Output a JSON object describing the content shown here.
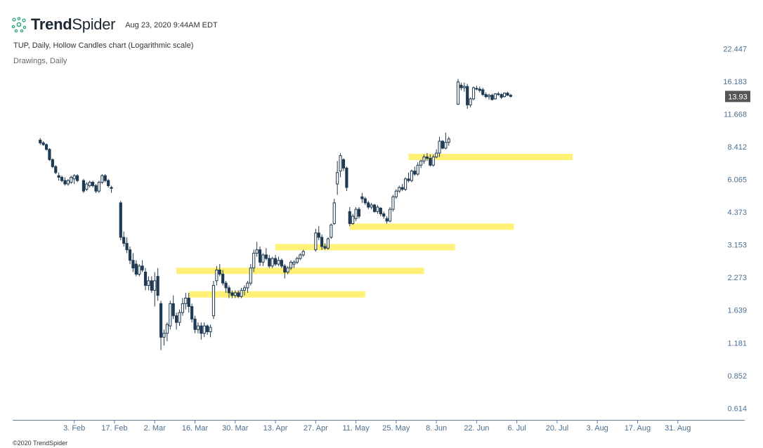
{
  "header": {
    "brand_bold": "Trend",
    "brand_light": "Spider",
    "timestamp": "Aug 23, 2020 9:44AM EDT",
    "subtitle": "TUP, Daily, Hollow Candles chart (Logarithmic scale)",
    "drawings": "Drawings, Daily"
  },
  "footer": {
    "copyright": "©2020 TrendSpider"
  },
  "colors": {
    "candle": "#1f3a52",
    "zone": "#fff176",
    "axis": "#4a6f90",
    "tag": "#555555"
  },
  "chart_data": {
    "type": "candlestick",
    "ticker": "TUP",
    "scale": "log",
    "title": "TUP, Daily, Hollow Candles chart (Logarithmic scale)",
    "ylim": [
      0.55,
      24
    ],
    "yticks": [
      22.447,
      16.183,
      11.668,
      8.412,
      6.065,
      4.373,
      3.153,
      2.273,
      1.639,
      1.181,
      0.852,
      0.614
    ],
    "ytick_labels": [
      "22.447",
      "16.183",
      "11.668",
      "8.412",
      "6.065",
      "4.373",
      "3.153",
      "2.273",
      "1.639",
      "1.181",
      "0.852",
      "0.614"
    ],
    "xlim": [
      -8,
      214
    ],
    "xticks": [
      {
        "label": "3. Feb",
        "i": 11
      },
      {
        "label": "17. Feb",
        "i": 24
      },
      {
        "label": "2. Mar",
        "i": 37
      },
      {
        "label": "16. Mar",
        "i": 50
      },
      {
        "label": "30. Mar",
        "i": 63
      },
      {
        "label": "13. Apr",
        "i": 76
      },
      {
        "label": "27. Apr",
        "i": 89
      },
      {
        "label": "11. May",
        "i": 102
      },
      {
        "label": "25. May",
        "i": 115
      },
      {
        "label": "8. Jun",
        "i": 128
      },
      {
        "label": "22. Jun",
        "i": 141
      },
      {
        "label": "6. Jul",
        "i": 154
      },
      {
        "label": "20. Jul",
        "i": 167
      },
      {
        "label": "3. Aug",
        "i": 180
      },
      {
        "label": "17. Aug",
        "i": 193
      },
      {
        "label": "31. Aug",
        "i": 206
      }
    ],
    "last_price": "13.93",
    "last_value": 13.93,
    "zones": [
      {
        "price": 1.92,
        "i_start": 48,
        "i_end": 105
      },
      {
        "price": 2.43,
        "i_start": 44,
        "i_end": 124
      },
      {
        "price": 3.08,
        "i_start": 76,
        "i_end": 134
      },
      {
        "price": 3.78,
        "i_start": 100,
        "i_end": 153
      },
      {
        "price": 7.6,
        "i_start": 119,
        "i_end": 172
      }
    ],
    "candles": [
      {
        "i": 0,
        "o": 9.0,
        "h": 9.2,
        "l": 8.6,
        "c": 8.75
      },
      {
        "i": 1,
        "o": 8.75,
        "h": 8.9,
        "l": 8.5,
        "c": 8.6
      },
      {
        "i": 2,
        "o": 8.6,
        "h": 8.7,
        "l": 8.1,
        "c": 8.2
      },
      {
        "i": 3,
        "o": 8.2,
        "h": 8.3,
        "l": 7.3,
        "c": 7.4
      },
      {
        "i": 4,
        "o": 7.4,
        "h": 7.5,
        "l": 6.8,
        "c": 6.9
      },
      {
        "i": 5,
        "o": 6.9,
        "h": 7.0,
        "l": 6.4,
        "c": 6.5
      },
      {
        "i": 6,
        "o": 6.3,
        "h": 6.5,
        "l": 6.0,
        "c": 6.2
      },
      {
        "i": 7,
        "o": 6.2,
        "h": 6.3,
        "l": 5.9,
        "c": 6.0
      },
      {
        "i": 8,
        "o": 6.0,
        "h": 6.2,
        "l": 5.7,
        "c": 5.8
      },
      {
        "i": 9,
        "o": 5.8,
        "h": 6.1,
        "l": 5.7,
        "c": 6.0
      },
      {
        "i": 10,
        "o": 5.9,
        "h": 6.3,
        "l": 5.8,
        "c": 6.2
      },
      {
        "i": 11,
        "o": 6.1,
        "h": 6.4,
        "l": 5.8,
        "c": 6.3
      },
      {
        "i": 12,
        "o": 6.3,
        "h": 6.4,
        "l": 5.9,
        "c": 6.0
      },
      {
        "i": 14,
        "o": 6.0,
        "h": 6.1,
        "l": 5.3,
        "c": 5.4
      },
      {
        "i": 15,
        "o": 5.5,
        "h": 5.9,
        "l": 5.4,
        "c": 5.8
      },
      {
        "i": 16,
        "o": 5.7,
        "h": 6.0,
        "l": 5.6,
        "c": 5.9
      },
      {
        "i": 17,
        "o": 5.9,
        "h": 6.0,
        "l": 5.6,
        "c": 5.7
      },
      {
        "i": 18,
        "o": 5.7,
        "h": 5.8,
        "l": 5.3,
        "c": 5.4
      },
      {
        "i": 19,
        "o": 5.4,
        "h": 6.0,
        "l": 5.3,
        "c": 5.9
      },
      {
        "i": 20,
        "o": 5.9,
        "h": 6.4,
        "l": 5.8,
        "c": 6.3
      },
      {
        "i": 21,
        "o": 6.3,
        "h": 6.4,
        "l": 5.9,
        "c": 6.0
      },
      {
        "i": 22,
        "o": 6.0,
        "h": 6.1,
        "l": 5.6,
        "c": 5.7
      },
      {
        "i": 23,
        "o": 5.6,
        "h": 5.7,
        "l": 5.3,
        "c": 5.55
      },
      {
        "i": 26,
        "o": 4.8,
        "h": 4.9,
        "l": 3.3,
        "c": 3.4
      },
      {
        "i": 27,
        "o": 3.4,
        "h": 3.6,
        "l": 3.1,
        "c": 3.2
      },
      {
        "i": 28,
        "o": 3.2,
        "h": 3.4,
        "l": 2.9,
        "c": 3.0
      },
      {
        "i": 29,
        "o": 3.0,
        "h": 3.1,
        "l": 2.6,
        "c": 2.7
      },
      {
        "i": 30,
        "o": 2.7,
        "h": 2.9,
        "l": 2.4,
        "c": 2.5
      },
      {
        "i": 31,
        "o": 2.6,
        "h": 2.7,
        "l": 2.3,
        "c": 2.35
      },
      {
        "i": 32,
        "o": 2.35,
        "h": 2.6,
        "l": 2.3,
        "c": 2.55
      },
      {
        "i": 33,
        "o": 2.55,
        "h": 2.7,
        "l": 2.4,
        "c": 2.45
      },
      {
        "i": 34,
        "o": 2.4,
        "h": 2.5,
        "l": 2.0,
        "c": 2.1
      },
      {
        "i": 35,
        "o": 2.1,
        "h": 2.3,
        "l": 2.0,
        "c": 2.2
      },
      {
        "i": 36,
        "o": 2.2,
        "h": 2.3,
        "l": 1.95,
        "c": 2.0
      },
      {
        "i": 37,
        "o": 2.0,
        "h": 2.4,
        "l": 1.7,
        "c": 2.2
      },
      {
        "i": 38,
        "o": 2.3,
        "h": 2.5,
        "l": 1.8,
        "c": 1.9
      },
      {
        "i": 39,
        "o": 1.75,
        "h": 1.8,
        "l": 1.1,
        "c": 1.25
      },
      {
        "i": 40,
        "o": 1.25,
        "h": 1.35,
        "l": 1.15,
        "c": 1.3
      },
      {
        "i": 41,
        "o": 1.3,
        "h": 1.45,
        "l": 1.2,
        "c": 1.42
      },
      {
        "i": 42,
        "o": 1.4,
        "h": 1.8,
        "l": 1.35,
        "c": 1.75
      },
      {
        "i": 43,
        "o": 1.75,
        "h": 1.9,
        "l": 1.5,
        "c": 1.55
      },
      {
        "i": 44,
        "o": 1.55,
        "h": 1.6,
        "l": 1.35,
        "c": 1.45
      },
      {
        "i": 45,
        "o": 1.45,
        "h": 1.65,
        "l": 1.4,
        "c": 1.6
      },
      {
        "i": 46,
        "o": 1.6,
        "h": 1.85,
        "l": 1.55,
        "c": 1.75
      },
      {
        "i": 47,
        "o": 1.75,
        "h": 1.95,
        "l": 1.65,
        "c": 1.85
      },
      {
        "i": 48,
        "o": 1.85,
        "h": 1.95,
        "l": 1.6,
        "c": 1.7
      },
      {
        "i": 49,
        "o": 1.7,
        "h": 1.75,
        "l": 1.45,
        "c": 1.5
      },
      {
        "i": 50,
        "o": 1.5,
        "h": 1.55,
        "l": 1.3,
        "c": 1.35
      },
      {
        "i": 51,
        "o": 1.35,
        "h": 1.45,
        "l": 1.3,
        "c": 1.4
      },
      {
        "i": 52,
        "o": 1.4,
        "h": 1.45,
        "l": 1.22,
        "c": 1.3
      },
      {
        "i": 53,
        "o": 1.3,
        "h": 1.45,
        "l": 1.25,
        "c": 1.4
      },
      {
        "i": 54,
        "o": 1.4,
        "h": 1.42,
        "l": 1.28,
        "c": 1.32
      },
      {
        "i": 55,
        "o": 1.32,
        "h": 1.42,
        "l": 1.25,
        "c": 1.38
      },
      {
        "i": 56,
        "o": 1.55,
        "h": 2.2,
        "l": 1.5,
        "c": 2.1
      },
      {
        "i": 57,
        "o": 2.2,
        "h": 2.55,
        "l": 2.1,
        "c": 2.45
      },
      {
        "i": 58,
        "o": 2.45,
        "h": 2.6,
        "l": 2.3,
        "c": 2.35
      },
      {
        "i": 59,
        "o": 2.35,
        "h": 2.45,
        "l": 2.1,
        "c": 2.15
      },
      {
        "i": 60,
        "o": 2.15,
        "h": 2.2,
        "l": 1.95,
        "c": 2.05
      },
      {
        "i": 61,
        "o": 2.05,
        "h": 2.1,
        "l": 1.85,
        "c": 1.95
      },
      {
        "i": 62,
        "o": 1.95,
        "h": 2.0,
        "l": 1.85,
        "c": 1.9
      },
      {
        "i": 63,
        "o": 1.9,
        "h": 2.0,
        "l": 1.85,
        "c": 1.95
      },
      {
        "i": 64,
        "o": 1.95,
        "h": 2.0,
        "l": 1.85,
        "c": 1.88
      },
      {
        "i": 65,
        "o": 1.88,
        "h": 2.05,
        "l": 1.85,
        "c": 2.0
      },
      {
        "i": 66,
        "o": 2.0,
        "h": 2.1,
        "l": 1.9,
        "c": 2.05
      },
      {
        "i": 67,
        "o": 2.05,
        "h": 2.2,
        "l": 1.95,
        "c": 2.15
      },
      {
        "i": 68,
        "o": 2.15,
        "h": 2.6,
        "l": 2.1,
        "c": 2.5
      },
      {
        "i": 69,
        "o": 2.5,
        "h": 3.0,
        "l": 2.4,
        "c": 2.9
      },
      {
        "i": 70,
        "o": 2.9,
        "h": 3.25,
        "l": 2.8,
        "c": 3.0
      },
      {
        "i": 71,
        "o": 3.0,
        "h": 3.1,
        "l": 2.55,
        "c": 2.65
      },
      {
        "i": 72,
        "o": 2.65,
        "h": 2.9,
        "l": 2.55,
        "c": 2.85
      },
      {
        "i": 73,
        "o": 2.85,
        "h": 3.05,
        "l": 2.7,
        "c": 2.75
      },
      {
        "i": 74,
        "o": 2.75,
        "h": 2.85,
        "l": 2.5,
        "c": 2.55
      },
      {
        "i": 75,
        "o": 2.55,
        "h": 2.8,
        "l": 2.5,
        "c": 2.75
      },
      {
        "i": 76,
        "o": 2.75,
        "h": 2.85,
        "l": 2.55,
        "c": 2.6
      },
      {
        "i": 77,
        "o": 2.6,
        "h": 2.8,
        "l": 2.55,
        "c": 2.7
      },
      {
        "i": 78,
        "o": 2.7,
        "h": 2.75,
        "l": 2.5,
        "c": 2.55
      },
      {
        "i": 79,
        "o": 2.55,
        "h": 2.6,
        "l": 2.25,
        "c": 2.4
      },
      {
        "i": 80,
        "o": 2.4,
        "h": 2.55,
        "l": 2.35,
        "c": 2.5
      },
      {
        "i": 81,
        "o": 2.5,
        "h": 2.7,
        "l": 2.45,
        "c": 2.65
      },
      {
        "i": 82,
        "o": 2.6,
        "h": 2.7,
        "l": 2.5,
        "c": 2.65
      },
      {
        "i": 83,
        "o": 2.65,
        "h": 2.8,
        "l": 2.6,
        "c": 2.75
      },
      {
        "i": 84,
        "o": 2.75,
        "h": 2.9,
        "l": 2.7,
        "c": 2.85
      },
      {
        "i": 85,
        "o": 2.85,
        "h": 3.0,
        "l": 2.8,
        "c": 2.95
      },
      {
        "i": 89,
        "o": 3.0,
        "h": 3.7,
        "l": 2.95,
        "c": 3.55
      },
      {
        "i": 90,
        "o": 3.55,
        "h": 3.8,
        "l": 3.3,
        "c": 3.4
      },
      {
        "i": 91,
        "o": 3.4,
        "h": 3.5,
        "l": 3.0,
        "c": 3.1
      },
      {
        "i": 92,
        "o": 3.1,
        "h": 3.2,
        "l": 3.0,
        "c": 3.05
      },
      {
        "i": 93,
        "o": 3.05,
        "h": 3.4,
        "l": 3.0,
        "c": 3.35
      },
      {
        "i": 94,
        "o": 3.4,
        "h": 3.9,
        "l": 3.35,
        "c": 3.85
      },
      {
        "i": 95,
        "o": 3.9,
        "h": 5.0,
        "l": 3.85,
        "c": 4.8
      },
      {
        "i": 96,
        "o": 5.8,
        "h": 7.3,
        "l": 5.2,
        "c": 6.5
      },
      {
        "i": 97,
        "o": 6.6,
        "h": 7.9,
        "l": 6.2,
        "c": 7.7
      },
      {
        "i": 98,
        "o": 7.4,
        "h": 7.5,
        "l": 6.6,
        "c": 6.8
      },
      {
        "i": 99,
        "o": 6.8,
        "h": 6.9,
        "l": 5.4,
        "c": 5.6
      },
      {
        "i": 100,
        "o": 4.4,
        "h": 4.6,
        "l": 3.8,
        "c": 3.9
      },
      {
        "i": 101,
        "o": 3.9,
        "h": 4.3,
        "l": 3.85,
        "c": 4.2
      },
      {
        "i": 102,
        "o": 4.1,
        "h": 4.6,
        "l": 4.0,
        "c": 4.5
      },
      {
        "i": 103,
        "o": 4.5,
        "h": 4.6,
        "l": 4.1,
        "c": 4.2
      },
      {
        "i": 104,
        "o": 5.1,
        "h": 5.3,
        "l": 4.8,
        "c": 5.0
      },
      {
        "i": 105,
        "o": 5.0,
        "h": 5.1,
        "l": 4.7,
        "c": 4.8
      },
      {
        "i": 106,
        "o": 4.8,
        "h": 4.9,
        "l": 4.5,
        "c": 4.6
      },
      {
        "i": 107,
        "o": 4.6,
        "h": 4.8,
        "l": 4.5,
        "c": 4.7
      },
      {
        "i": 108,
        "o": 4.7,
        "h": 4.75,
        "l": 4.35,
        "c": 4.4
      },
      {
        "i": 109,
        "o": 4.4,
        "h": 4.7,
        "l": 4.3,
        "c": 4.6
      },
      {
        "i": 110,
        "o": 4.55,
        "h": 4.6,
        "l": 4.2,
        "c": 4.3
      },
      {
        "i": 111,
        "o": 4.3,
        "h": 4.4,
        "l": 4.1,
        "c": 4.2
      },
      {
        "i": 112,
        "o": 4.1,
        "h": 4.2,
        "l": 3.9,
        "c": 4.0
      },
      {
        "i": 113,
        "o": 4.0,
        "h": 4.6,
        "l": 3.95,
        "c": 4.5
      },
      {
        "i": 114,
        "o": 4.5,
        "h": 5.2,
        "l": 4.4,
        "c": 5.1
      },
      {
        "i": 115,
        "o": 5.1,
        "h": 5.5,
        "l": 5.0,
        "c": 5.4
      },
      {
        "i": 116,
        "o": 5.4,
        "h": 5.7,
        "l": 5.3,
        "c": 5.6
      },
      {
        "i": 117,
        "o": 5.6,
        "h": 5.8,
        "l": 5.4,
        "c": 5.5
      },
      {
        "i": 118,
        "o": 5.5,
        "h": 6.2,
        "l": 5.4,
        "c": 6.1
      },
      {
        "i": 119,
        "o": 6.1,
        "h": 6.5,
        "l": 5.9,
        "c": 6.0
      },
      {
        "i": 120,
        "o": 6.0,
        "h": 6.7,
        "l": 5.9,
        "c": 6.6
      },
      {
        "i": 121,
        "o": 6.6,
        "h": 6.9,
        "l": 6.3,
        "c": 6.4
      },
      {
        "i": 122,
        "o": 6.4,
        "h": 7.2,
        "l": 6.3,
        "c": 7.0
      },
      {
        "i": 123,
        "o": 7.0,
        "h": 7.4,
        "l": 6.8,
        "c": 7.3
      },
      {
        "i": 124,
        "o": 7.3,
        "h": 7.8,
        "l": 7.1,
        "c": 7.6
      },
      {
        "i": 125,
        "o": 7.6,
        "h": 7.9,
        "l": 7.3,
        "c": 7.5
      },
      {
        "i": 126,
        "o": 7.5,
        "h": 7.8,
        "l": 6.9,
        "c": 7.0
      },
      {
        "i": 127,
        "o": 7.0,
        "h": 7.8,
        "l": 6.9,
        "c": 7.6
      },
      {
        "i": 128,
        "o": 7.6,
        "h": 8.2,
        "l": 7.5,
        "c": 7.9
      },
      {
        "i": 129,
        "o": 7.9,
        "h": 9.3,
        "l": 7.6,
        "c": 8.9
      },
      {
        "i": 130,
        "o": 8.9,
        "h": 9.0,
        "l": 8.2,
        "c": 8.3
      },
      {
        "i": 131,
        "o": 8.3,
        "h": 9.7,
        "l": 8.2,
        "c": 8.8
      },
      {
        "i": 132,
        "o": 8.8,
        "h": 9.3,
        "l": 8.5,
        "c": 9.1
      },
      {
        "i": 135,
        "o": 12.9,
        "h": 16.6,
        "l": 12.8,
        "c": 16.1
      },
      {
        "i": 136,
        "o": 15.6,
        "h": 16.0,
        "l": 14.8,
        "c": 15.2
      },
      {
        "i": 137,
        "o": 15.2,
        "h": 16.0,
        "l": 14.6,
        "c": 15.4
      },
      {
        "i": 138,
        "o": 15.4,
        "h": 15.8,
        "l": 12.3,
        "c": 12.8
      },
      {
        "i": 139,
        "o": 12.8,
        "h": 13.8,
        "l": 12.5,
        "c": 13.6
      },
      {
        "i": 140,
        "o": 13.6,
        "h": 15.4,
        "l": 13.4,
        "c": 15.2
      },
      {
        "i": 141,
        "o": 15.1,
        "h": 15.5,
        "l": 14.8,
        "c": 15.0
      },
      {
        "i": 142,
        "o": 15.0,
        "h": 15.4,
        "l": 14.5,
        "c": 14.8
      },
      {
        "i": 143,
        "o": 14.9,
        "h": 15.2,
        "l": 14.0,
        "c": 14.2
      },
      {
        "i": 144,
        "o": 14.2,
        "h": 14.5,
        "l": 13.7,
        "c": 13.9
      },
      {
        "i": 145,
        "o": 13.9,
        "h": 14.3,
        "l": 13.5,
        "c": 14.1
      },
      {
        "i": 146,
        "o": 14.1,
        "h": 14.3,
        "l": 13.4,
        "c": 13.5
      },
      {
        "i": 147,
        "o": 13.6,
        "h": 14.4,
        "l": 13.5,
        "c": 14.3
      },
      {
        "i": 148,
        "o": 14.3,
        "h": 14.6,
        "l": 14.0,
        "c": 14.2
      },
      {
        "i": 149,
        "o": 14.2,
        "h": 14.4,
        "l": 13.6,
        "c": 13.8
      },
      {
        "i": 150,
        "o": 13.9,
        "h": 14.5,
        "l": 13.8,
        "c": 14.4
      },
      {
        "i": 151,
        "o": 14.4,
        "h": 14.6,
        "l": 14.0,
        "c": 14.1
      },
      {
        "i": 152,
        "o": 14.1,
        "h": 14.3,
        "l": 13.8,
        "c": 13.93
      }
    ]
  }
}
